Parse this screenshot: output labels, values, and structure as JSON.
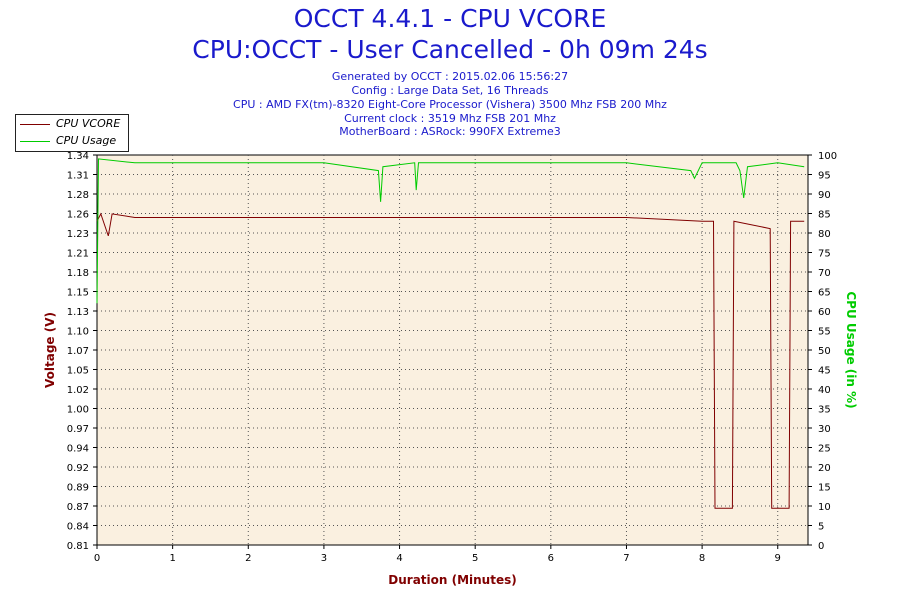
{
  "header": {
    "title_line1": "OCCT 4.4.1 - CPU VCORE",
    "title_line2": "CPU:OCCT - User Cancelled - 0h 09m 24s",
    "info_lines": [
      "Generated by OCCT : 2015.02.06 15:56:27",
      "Config : Large Data Set, 16 Threads",
      "CPU : AMD FX(tm)-8320 Eight-Core Processor (Vishera) 3500 Mhz FSB 200 Mhz",
      "Current clock : 3519 Mhz FSB 201 Mhz",
      "MotherBoard : ASRock: 990FX Extreme3"
    ]
  },
  "legend": {
    "items": [
      {
        "label": "CPU VCORE",
        "color": "#800000"
      },
      {
        "label": "CPU Usage",
        "color": "#00cc00"
      }
    ]
  },
  "chart_data": {
    "type": "line",
    "title": "OCCT 4.4.1 - CPU VCORE",
    "xlabel": "Duration (Minutes)",
    "ylabel": "Voltage (V)",
    "y2label": "CPU Usage (in %)",
    "xlim": [
      0,
      9.4
    ],
    "ylim": [
      0.81,
      1.34
    ],
    "y2lim": [
      0,
      100
    ],
    "x_ticks": [
      "0",
      "1",
      "2",
      "3",
      "4",
      "5",
      "6",
      "7",
      "8",
      "9"
    ],
    "y_ticks": [
      "0.81",
      "0.84",
      "0.87",
      "0.89",
      "0.92",
      "0.94",
      "0.97",
      "1.00",
      "1.02",
      "1.05",
      "1.07",
      "1.10",
      "1.13",
      "1.15",
      "1.18",
      "1.21",
      "1.23",
      "1.26",
      "1.28",
      "1.31",
      "1.34"
    ],
    "y2_ticks": [
      "0",
      "5",
      "10",
      "15",
      "20",
      "25",
      "30",
      "35",
      "40",
      "45",
      "50",
      "55",
      "60",
      "65",
      "70",
      "75",
      "80",
      "85",
      "90",
      "95",
      "100"
    ],
    "grid": true,
    "legend_position": "top-left",
    "series": [
      {
        "name": "CPU VCORE",
        "axis": "left",
        "color": "#800000",
        "points": [
          [
            0,
            1.25
          ],
          [
            0.05,
            1.26
          ],
          [
            0.15,
            1.23
          ],
          [
            0.2,
            1.26
          ],
          [
            0.5,
            1.255
          ],
          [
            1.0,
            1.255
          ],
          [
            2.0,
            1.255
          ],
          [
            3.0,
            1.255
          ],
          [
            4.0,
            1.255
          ],
          [
            5.0,
            1.255
          ],
          [
            6.0,
            1.255
          ],
          [
            7.0,
            1.255
          ],
          [
            8.0,
            1.25
          ],
          [
            8.15,
            1.25
          ],
          [
            8.17,
            0.86
          ],
          [
            8.4,
            0.86
          ],
          [
            8.42,
            1.25
          ],
          [
            8.9,
            1.24
          ],
          [
            8.92,
            0.86
          ],
          [
            9.15,
            0.86
          ],
          [
            9.17,
            1.25
          ],
          [
            9.35,
            1.25
          ]
        ]
      },
      {
        "name": "CPU Usage",
        "axis": "right",
        "color": "#00cc00",
        "points": [
          [
            0,
            62
          ],
          [
            0.02,
            99
          ],
          [
            0.5,
            98
          ],
          [
            1.0,
            98
          ],
          [
            2.0,
            98
          ],
          [
            3.0,
            98
          ],
          [
            3.72,
            96
          ],
          [
            3.75,
            88
          ],
          [
            3.78,
            97
          ],
          [
            4.2,
            98
          ],
          [
            4.22,
            91
          ],
          [
            4.25,
            98
          ],
          [
            5.0,
            98
          ],
          [
            6.0,
            98
          ],
          [
            7.0,
            98
          ],
          [
            7.85,
            96
          ],
          [
            7.9,
            94
          ],
          [
            8.0,
            98
          ],
          [
            8.45,
            98
          ],
          [
            8.5,
            96
          ],
          [
            8.55,
            89
          ],
          [
            8.6,
            97
          ],
          [
            9.0,
            98
          ],
          [
            9.35,
            97
          ]
        ]
      }
    ]
  }
}
